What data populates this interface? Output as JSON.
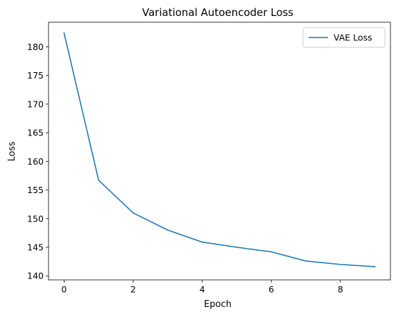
{
  "chart_data": {
    "type": "line",
    "title": "Variational Autoencoder Loss",
    "xlabel": "Epoch",
    "ylabel": "Loss",
    "xlim": [
      -0.45,
      9.45
    ],
    "ylim": [
      139.3,
      184.3
    ],
    "xticks": [
      0,
      2,
      4,
      6,
      8
    ],
    "yticks": [
      140,
      145,
      150,
      155,
      160,
      165,
      170,
      175,
      180
    ],
    "grid": false,
    "legend_position": "top-right",
    "series": [
      {
        "name": "VAE Loss",
        "color": "#1f77b4",
        "x": [
          0,
          1,
          2,
          3,
          4,
          5,
          6,
          7,
          8,
          9
        ],
        "y": [
          182.4,
          156.7,
          151.0,
          148.0,
          145.9,
          145.0,
          144.2,
          142.6,
          142.0,
          141.6
        ]
      }
    ]
  }
}
